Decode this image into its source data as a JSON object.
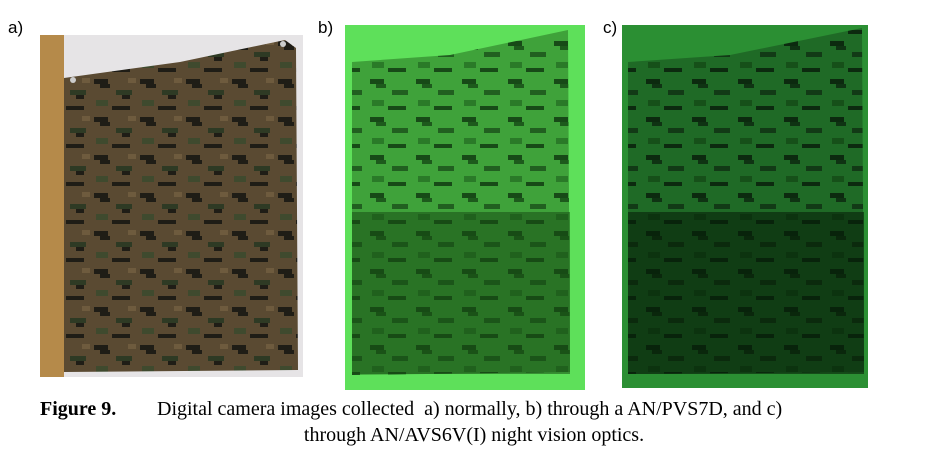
{
  "panels": [
    {
      "label": "a)"
    },
    {
      "label": "b)"
    },
    {
      "label": "c)"
    }
  ],
  "caption": {
    "label": "Figure 9.",
    "line1": "Digital camera images collected  a) normally, b) through a AN/PVS7D, and c)",
    "line2": "through AN/AVS6V(I) night vision optics."
  }
}
